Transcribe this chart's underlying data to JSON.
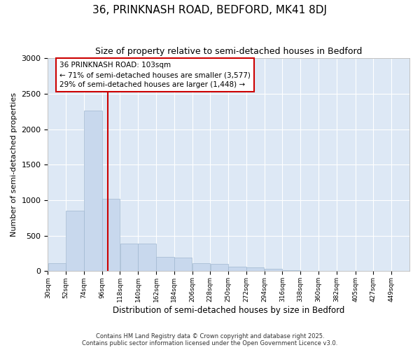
{
  "title_line1": "36, PRINKNASH ROAD, BEDFORD, MK41 8DJ",
  "title_line2": "Size of property relative to semi-detached houses in Bedford",
  "xlabel": "Distribution of semi-detached houses by size in Bedford",
  "ylabel": "Number of semi-detached properties",
  "annotation_title": "36 PRINKNASH ROAD: 103sqm",
  "annotation_line2": "← 71% of semi-detached houses are smaller (3,577)",
  "annotation_line3": "29% of semi-detached houses are larger (1,448) →",
  "bar_edges": [
    30,
    52,
    74,
    96,
    118,
    140,
    162,
    184,
    206,
    228,
    250,
    272,
    294,
    316,
    338,
    360,
    382,
    405,
    427,
    449,
    471
  ],
  "bar_heights": [
    110,
    850,
    2260,
    1020,
    390,
    390,
    200,
    190,
    110,
    100,
    60,
    55,
    35,
    12,
    8,
    4,
    3,
    2,
    2,
    1
  ],
  "bar_color": "#c8d8ed",
  "bar_edge_color": "#a0b8d0",
  "vline_color": "#cc0000",
  "vline_x": 103,
  "annotation_box_color": "#cc0000",
  "figure_bg": "#ffffff",
  "plot_bg_color": "#dde8f5",
  "grid_color": "#ffffff",
  "ylim": [
    0,
    3000
  ],
  "yticks": [
    0,
    500,
    1000,
    1500,
    2000,
    2500,
    3000
  ],
  "footer_line1": "Contains HM Land Registry data © Crown copyright and database right 2025.",
  "footer_line2": "Contains public sector information licensed under the Open Government Licence v3.0."
}
